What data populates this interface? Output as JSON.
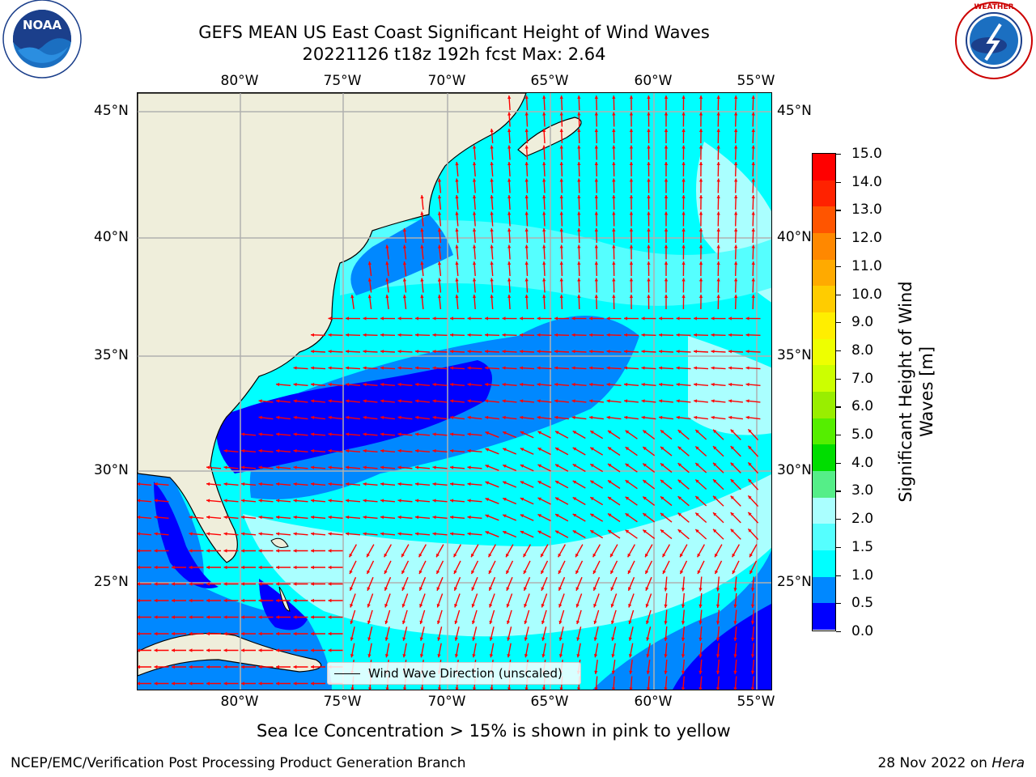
{
  "title": {
    "line1": "GEFS MEAN US East Coast Significant Height of Wind Waves",
    "line2": "20221126 t18z 192h fcst   Max: 2.64"
  },
  "logos": {
    "left": {
      "text": "NOAA",
      "ring_text": "NATIONAL OCEANIC AND ATMOSPHERIC ADMINISTRATION · U.S. DEPARTMENT OF COMMERCE",
      "icon": "noaa-logo"
    },
    "right": {
      "ring_text": "NATIONAL WEATHER SERVICE",
      "icon": "nws-logo"
    }
  },
  "axes": {
    "lon_ticks": [
      "80°W",
      "75°W",
      "70°W",
      "65°W",
      "60°W",
      "55°W"
    ],
    "lat_ticks": [
      "45°N",
      "40°N",
      "35°N",
      "30°N",
      "25°N"
    ],
    "gridlines": true
  },
  "colorbar": {
    "label_line1": "Significant Height of Wind",
    "label_line2": "Waves [m]",
    "ticks": [
      "15.0",
      "14.0",
      "13.0",
      "12.0",
      "11.0",
      "10.0",
      "9.0",
      "8.0",
      "7.0",
      "6.0",
      "5.0",
      "4.0",
      "3.0",
      "2.0",
      "1.5",
      "1.0",
      "0.5",
      "0.0"
    ],
    "colors_top_to_bottom": [
      "#ff0000",
      "#ff2200",
      "#ff5500",
      "#ff8800",
      "#ffaa00",
      "#ffcc00",
      "#ffee00",
      "#eeff00",
      "#ccff00",
      "#99ee00",
      "#55ee00",
      "#00dd00",
      "#55ee88",
      "#aaffff",
      "#55ffff",
      "#00ffff",
      "#0088ff",
      "#0000ff"
    ]
  },
  "legend": {
    "label": "Wind Wave Direction (unscaled)"
  },
  "map_colors": {
    "land": "#efeedb",
    "coast": "#000000",
    "grid": "#b0b0b0",
    "arrow": "#ff0000"
  },
  "note": "Sea Ice Concentration > 15% is shown in pink to yellow",
  "footer": {
    "left": "NCEP/EMC/Verification Post Processing Product Generation Branch",
    "right_prefix": "28 Nov 2022 on ",
    "right_host": "Hera"
  }
}
